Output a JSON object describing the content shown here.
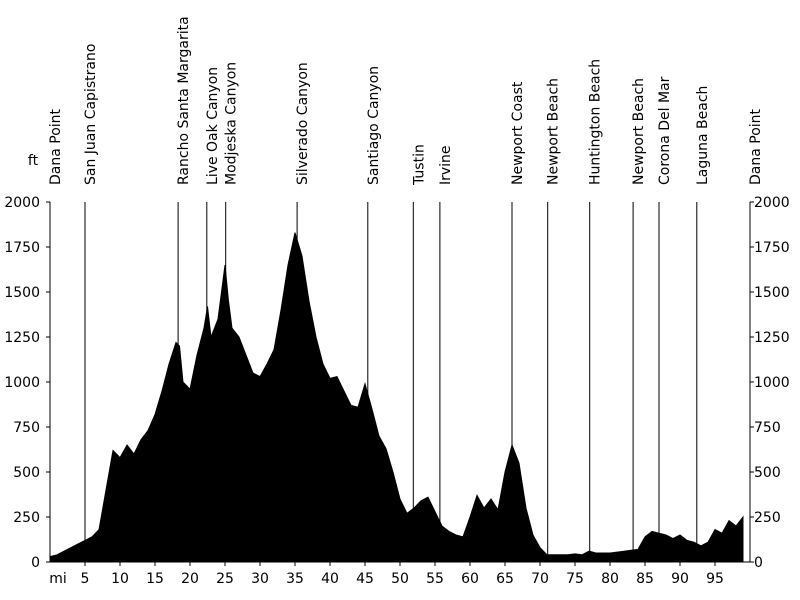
{
  "chart_data": {
    "type": "area",
    "color": "#000000",
    "y_unit": "ft",
    "x_unit": "mi",
    "x": [
      0,
      1,
      2,
      3,
      4,
      5,
      6,
      7,
      8,
      9,
      10,
      11,
      12,
      13,
      14,
      15,
      16,
      17,
      18,
      18.5,
      19,
      20,
      21,
      22,
      22.5,
      23,
      24,
      25,
      25.5,
      26,
      27,
      28,
      29,
      30,
      31,
      32,
      33,
      34,
      35,
      36,
      37,
      38,
      39,
      40,
      41,
      42,
      43,
      44,
      45,
      46,
      47,
      48,
      49,
      50,
      51,
      52,
      53,
      54,
      55,
      56,
      57,
      58,
      59,
      60,
      61,
      62,
      63,
      64,
      65,
      66,
      67,
      68,
      69,
      70,
      71,
      72,
      73,
      74,
      75,
      76,
      77,
      78,
      79,
      80,
      81,
      82,
      83,
      84,
      85,
      86,
      87,
      88,
      89,
      90,
      91,
      92,
      93,
      94,
      95,
      96,
      97,
      98,
      99
    ],
    "values": [
      30,
      40,
      60,
      80,
      100,
      120,
      140,
      180,
      400,
      620,
      580,
      650,
      600,
      680,
      730,
      820,
      950,
      1100,
      1220,
      1200,
      1000,
      960,
      1150,
      1300,
      1420,
      1250,
      1350,
      1650,
      1450,
      1300,
      1250,
      1150,
      1050,
      1030,
      1100,
      1180,
      1400,
      1650,
      1830,
      1700,
      1450,
      1250,
      1100,
      1020,
      1030,
      950,
      870,
      860,
      990,
      850,
      700,
      630,
      500,
      350,
      270,
      300,
      340,
      360,
      280,
      200,
      170,
      150,
      140,
      250,
      370,
      300,
      350,
      290,
      500,
      650,
      550,
      300,
      150,
      80,
      40,
      40,
      40,
      40,
      45,
      40,
      60,
      50,
      50,
      50,
      55,
      60,
      65,
      70,
      140,
      170,
      160,
      150,
      130,
      150,
      120,
      110,
      90,
      110,
      180,
      160,
      230,
      200,
      250
    ],
    "xlim": [
      0,
      100
    ],
    "ylim": [
      0,
      2000
    ],
    "xticks": [
      5,
      10,
      15,
      20,
      25,
      30,
      35,
      40,
      45,
      50,
      55,
      60,
      65,
      70,
      75,
      80,
      85,
      90,
      95
    ],
    "yticks": [
      0,
      250,
      500,
      750,
      1000,
      1250,
      1500,
      1750,
      2000
    ],
    "markers": [
      {
        "label": "Dana Point",
        "x": 0
      },
      {
        "label": "San Juan Capistrano",
        "x": 5
      },
      {
        "label": "Rancho Santa Margarita",
        "x": 18.3
      },
      {
        "label": "Live Oak Canyon",
        "x": 22.4
      },
      {
        "label": "Modjeska Canyon",
        "x": 25.1
      },
      {
        "label": "Silverado Canyon",
        "x": 35.3
      },
      {
        "label": "Santiago Canyon",
        "x": 45.4
      },
      {
        "label": "Tustin",
        "x": 51.9
      },
      {
        "label": "Irvine",
        "x": 55.7
      },
      {
        "label": "Newport Coast",
        "x": 66
      },
      {
        "label": "Newport Beach",
        "x": 71.1
      },
      {
        "label": "Huntington Beach",
        "x": 77.1
      },
      {
        "label": "Newport Beach",
        "x": 83.3
      },
      {
        "label": "Corona Del Mar",
        "x": 87
      },
      {
        "label": "Laguna Beach",
        "x": 92.4
      },
      {
        "label": "Dana Point",
        "x": 100
      }
    ]
  }
}
